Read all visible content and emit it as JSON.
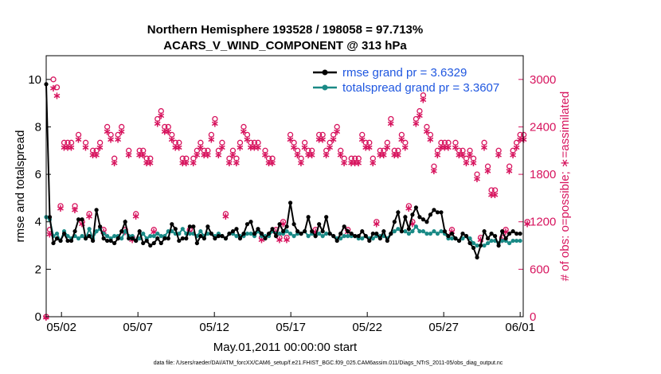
{
  "chart_data": {
    "type": "line",
    "title_line1": "Northern Hemisphere 193528 / 198058 = 97.713%",
    "title_line2": "ACARS_V_WIND_COMPONENT @ 313 hPa",
    "xlabel": "May.01,2011 00:00:00 start",
    "ylabel_left": "rmse and totalspread",
    "ylabel_right": "# of obs: o=possible; ∗=assimilated",
    "footer": "data file: /Users/raeder/DAI/ATM_forcXX/CAM6_setup/f.e21.FHIST_BGC.f09_025.CAM6assim.011/Diags_NTrS_2011-05/obs_diag_output.nc",
    "x_ticks": [
      "05/02",
      "05/07",
      "05/12",
      "05/17",
      "05/22",
      "05/27",
      "06/01"
    ],
    "x_tick_days": [
      1,
      6,
      11,
      16,
      21,
      26,
      31
    ],
    "xlim_days": [
      0,
      31.2
    ],
    "ylim_left": [
      0,
      11
    ],
    "y_ticks_left": [
      "0",
      "2",
      "4",
      "6",
      "8",
      "10"
    ],
    "ylim_right": [
      0,
      3300
    ],
    "y_ticks_right": [
      "0",
      "600",
      "1200",
      "1800",
      "2400",
      "3000"
    ],
    "colors": {
      "rmse": "#000000",
      "spread": "#1a8a86",
      "obs": "#d7145e",
      "legend_text": "#1f57e0"
    },
    "series": [
      {
        "name": "rmse grand pr = 3.6329",
        "key": "rmse",
        "values": [
          9.8,
          4.2,
          3.1,
          3.3,
          3.2,
          3.5,
          3.2,
          3.2,
          3.6,
          4.1,
          4.1,
          3.3,
          3.4,
          3.2,
          4.5,
          3.8,
          3.3,
          3.2,
          3.2,
          3.1,
          3.3,
          3.6,
          4.0,
          3.3,
          3.3,
          3.2,
          3.6,
          3.1,
          3.2,
          3.0,
          3.1,
          3.3,
          3.1,
          3.3,
          3.3,
          3.9,
          3.7,
          3.2,
          3.3,
          3.3,
          3.8,
          3.8,
          3.1,
          3.4,
          3.3,
          3.8,
          3.5,
          3.3,
          3.4,
          3.4,
          3.3,
          3.5,
          3.6,
          3.7,
          3.3,
          3.5,
          3.9,
          4.0,
          3.5,
          3.7,
          3.5,
          3.3,
          3.5,
          3.7,
          3.4,
          3.9,
          3.6,
          3.8,
          4.8,
          3.9,
          3.6,
          3.5,
          3.6,
          4.2,
          3.6,
          3.4,
          3.9,
          3.6,
          4.2,
          3.5,
          3.4,
          3.2,
          3.5,
          3.8,
          3.6,
          3.5,
          3.4,
          3.4,
          3.6,
          3.4,
          3.2,
          3.5,
          3.5,
          3.3,
          3.6,
          3.2,
          3.5,
          4.0,
          4.4,
          3.6,
          4.2,
          3.7,
          4.3,
          4.6,
          4.2,
          4.1,
          4.0,
          4.3,
          4.5,
          4.4,
          4.4,
          3.6,
          3.4,
          3.5,
          3.3,
          3.2,
          3.5,
          3.4,
          3.1,
          2.9,
          2.5,
          3.0,
          3.6,
          3.3,
          3.5,
          3.4,
          3.0,
          3.6,
          3.3,
          3.5,
          3.6,
          3.5,
          3.5
        ]
      },
      {
        "name": "totalspread grand pr = 3.3607",
        "key": "spread",
        "values": [
          4.2,
          4.1,
          3.4,
          3.5,
          3.2,
          3.6,
          3.4,
          3.3,
          3.4,
          3.3,
          3.4,
          3.3,
          3.7,
          3.3,
          3.6,
          3.7,
          3.5,
          3.4,
          3.3,
          3.4,
          3.4,
          3.3,
          3.6,
          3.4,
          3.4,
          3.2,
          3.3,
          3.5,
          3.3,
          3.4,
          3.4,
          3.5,
          3.4,
          3.4,
          3.6,
          3.6,
          3.5,
          3.5,
          3.7,
          3.5,
          3.5,
          3.5,
          3.4,
          3.6,
          3.4,
          3.5,
          3.5,
          3.4,
          3.5,
          3.4,
          3.3,
          3.5,
          3.5,
          3.4,
          3.4,
          3.4,
          3.5,
          3.5,
          3.4,
          3.6,
          3.4,
          3.4,
          3.4,
          3.6,
          3.5,
          3.5,
          3.5,
          3.6,
          3.5,
          3.4,
          3.5,
          3.5,
          3.6,
          3.4,
          3.5,
          3.4,
          3.5,
          3.4,
          3.5,
          3.5,
          3.4,
          3.3,
          3.3,
          3.4,
          3.4,
          3.4,
          3.4,
          3.3,
          3.3,
          3.4,
          3.3,
          3.3,
          3.4,
          3.4,
          3.4,
          3.3,
          3.5,
          3.6,
          3.7,
          3.6,
          3.6,
          3.5,
          3.6,
          3.8,
          3.6,
          3.6,
          3.5,
          3.5,
          3.6,
          3.5,
          3.6,
          3.5,
          3.3,
          3.3,
          3.3,
          3.2,
          3.3,
          3.4,
          3.3,
          3.1,
          3.0,
          3.0,
          3.0,
          3.1,
          3.2,
          3.2,
          3.1,
          3.2,
          3.2,
          3.1,
          3.2,
          3.2,
          3.2
        ]
      },
      {
        "key": "obs_possible",
        "values": [
          0,
          1100,
          3000,
          2900,
          1400,
          2200,
          2200,
          2200,
          1400,
          2300,
          1200,
          2200,
          1300,
          2100,
          2100,
          2200,
          1100,
          2400,
          2300,
          2000,
          2300,
          2400,
          1100,
          2100,
          1000,
          1300,
          2100,
          2100,
          2000,
          2000,
          1100,
          2500,
          2600,
          2400,
          2400,
          2300,
          2200,
          2200,
          2000,
          2000,
          1100,
          2000,
          2100,
          2200,
          2100,
          2100,
          2300,
          2500,
          2100,
          2200,
          1300,
          2000,
          2100,
          2000,
          2200,
          2400,
          2300,
          2200,
          2200,
          2200,
          1000,
          2100,
          2000,
          2000,
          1100,
          1000,
          1200,
          1000,
          2300,
          2200,
          2100,
          2000,
          2200,
          2100,
          2100,
          1100,
          2300,
          2300,
          2100,
          2200,
          2300,
          2400,
          2100,
          2000,
          1100,
          2000,
          2000,
          2000,
          2300,
          2200,
          2200,
          2000,
          1200,
          2100,
          2100,
          2200,
          2500,
          2100,
          2100,
          2300,
          2200,
          1400,
          1200,
          2500,
          2600,
          2800,
          2400,
          2300,
          1900,
          2100,
          2200,
          2200,
          2200,
          1100,
          2200,
          2100,
          2100,
          2000,
          2100,
          2000,
          1800,
          1000,
          2200,
          1900,
          1600,
          1600,
          2100,
          1000,
          1100,
          1900,
          2100,
          2200,
          2300,
          2300,
          1200
        ]
      },
      {
        "key": "obs_assimilated",
        "values": [
          0,
          1050,
          2900,
          2800,
          1380,
          2150,
          2150,
          2150,
          1360,
          2250,
          1180,
          2150,
          1280,
          2050,
          2050,
          2150,
          1080,
          2350,
          2250,
          1950,
          2250,
          2350,
          1080,
          2050,
          980,
          1280,
          2050,
          2050,
          1950,
          1950,
          1080,
          2450,
          2550,
          2350,
          2350,
          2250,
          2150,
          2150,
          1950,
          1950,
          1080,
          1950,
          2050,
          2150,
          2050,
          2050,
          2250,
          2450,
          2050,
          2150,
          1280,
          1950,
          2050,
          1950,
          2150,
          2350,
          2250,
          2150,
          2150,
          2150,
          980,
          2050,
          1950,
          1950,
          1080,
          980,
          1180,
          980,
          2250,
          2150,
          2050,
          1950,
          2150,
          2050,
          2050,
          1080,
          2250,
          2250,
          2050,
          2150,
          2250,
          2350,
          2050,
          1950,
          1080,
          1950,
          1950,
          1950,
          2250,
          2150,
          2150,
          1950,
          1180,
          2050,
          2050,
          2150,
          2450,
          2050,
          2050,
          2250,
          2150,
          1380,
          1180,
          2450,
          2550,
          2750,
          2350,
          2250,
          1850,
          2050,
          2150,
          2150,
          2150,
          1080,
          2150,
          2050,
          2050,
          1950,
          2050,
          1950,
          1750,
          980,
          2150,
          1850,
          1550,
          1550,
          2050,
          980,
          1080,
          1850,
          2050,
          2150,
          2250,
          2250,
          1180
        ]
      }
    ],
    "legend": {
      "placement": "top-right",
      "entries": [
        "rmse grand pr = 3.6329",
        "totalspread grand pr = 3.3607"
      ]
    },
    "grid": false
  }
}
